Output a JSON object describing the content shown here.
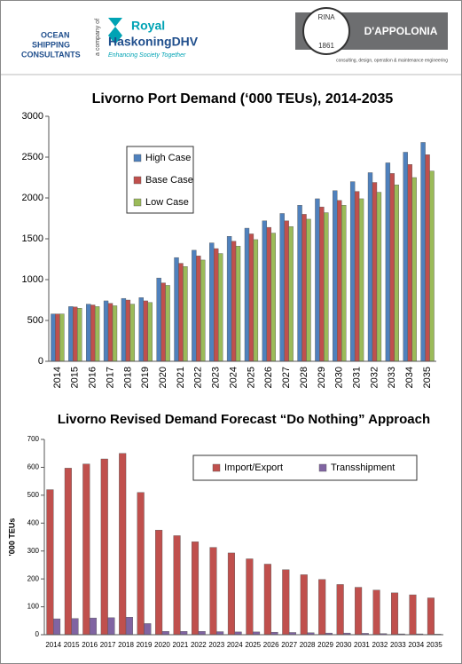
{
  "header": {
    "company": [
      "OCEAN",
      "SHIPPING",
      "CONSULTANTS"
    ],
    "tagline": "a company of",
    "partner": [
      "Royal",
      "HaskoningDHV"
    ],
    "partner_slogan": "Enhancing Society Together",
    "seal": [
      "RINA",
      "1861"
    ],
    "firm": "D'APPOLONIA",
    "firm_slogan": "consulting, design, operation & maintenance engineering"
  },
  "chart_data": [
    {
      "type": "bar",
      "title": "Livorno Port Demand (‘000 TEUs), 2014-2035",
      "categories": [
        "2014",
        "2015",
        "2016",
        "2017",
        "2018",
        "2019",
        "2020",
        "2021",
        "2022",
        "2023",
        "2024",
        "2025",
        "2026",
        "2027",
        "2028",
        "2029",
        "2030",
        "2031",
        "2032",
        "2033",
        "2034",
        "2035"
      ],
      "series": [
        {
          "name": "High Case",
          "color": "#4f81bd",
          "values": [
            580,
            670,
            700,
            740,
            770,
            780,
            1020,
            1270,
            1360,
            1450,
            1530,
            1630,
            1720,
            1810,
            1910,
            1990,
            2090,
            2200,
            2310,
            2430,
            2560,
            2680
          ]
        },
        {
          "name": "Base Case",
          "color": "#c0504d",
          "values": [
            580,
            665,
            690,
            710,
            750,
            740,
            960,
            1200,
            1290,
            1380,
            1470,
            1560,
            1640,
            1720,
            1800,
            1890,
            1970,
            2080,
            2190,
            2300,
            2410,
            2530
          ]
        },
        {
          "name": "Low Case",
          "color": "#9bbb59",
          "values": [
            580,
            650,
            670,
            680,
            700,
            720,
            930,
            1160,
            1240,
            1320,
            1410,
            1490,
            1570,
            1650,
            1740,
            1820,
            1910,
            1990,
            2070,
            2160,
            2250,
            2330
          ]
        }
      ],
      "ylim": [
        0,
        3000
      ],
      "yticks": [
        0,
        500,
        1000,
        1500,
        2000,
        2500,
        3000
      ],
      "legend": "upper left",
      "x_label_rotation": -90
    },
    {
      "type": "bar",
      "title": "Livorno Revised Demand Forecast “Do Nothing” Approach",
      "y_label": "'000 TEUs",
      "categories": [
        "2014",
        "2015",
        "2016",
        "2017",
        "2018",
        "2019",
        "2020",
        "2021",
        "2022",
        "2023",
        "2024",
        "2025",
        "2026",
        "2027",
        "2028",
        "2029",
        "2030",
        "2031",
        "2032",
        "2033",
        "2034",
        "2035"
      ],
      "series": [
        {
          "name": "Import/Export",
          "color": "#c0504d",
          "values": [
            520,
            597,
            612,
            630,
            650,
            510,
            375,
            355,
            333,
            313,
            293,
            272,
            253,
            233,
            215,
            198,
            180,
            170,
            160,
            150,
            143,
            132
          ]
        },
        {
          "name": "Transshipment",
          "color": "#8064a2",
          "values": [
            57,
            58,
            60,
            61,
            63,
            40,
            12,
            12,
            12,
            11,
            10,
            10,
            9,
            8,
            7,
            6,
            6,
            5,
            4,
            3,
            3,
            2
          ]
        }
      ],
      "ylim": [
        0,
        700
      ],
      "yticks": [
        0,
        100,
        200,
        300,
        400,
        500,
        600,
        700
      ],
      "legend": "upper right",
      "x_label_rotation": 0
    }
  ]
}
